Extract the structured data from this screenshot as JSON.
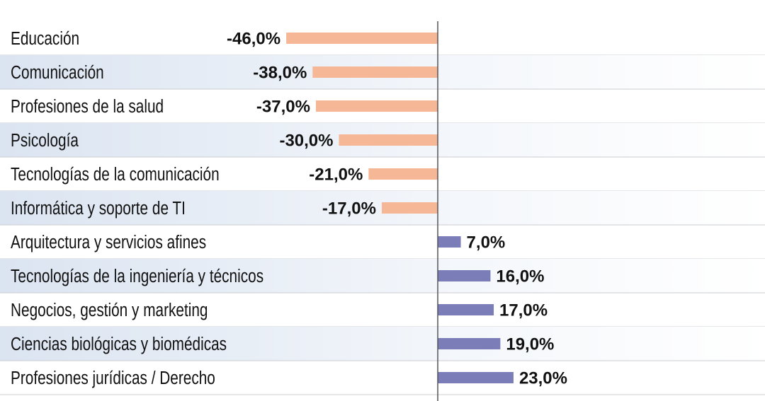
{
  "chart_data": {
    "type": "diverging-bar",
    "categories": [
      "Educación",
      "Comunicación",
      "Profesiones de la salud",
      "Psicología",
      "Tecnologías de la comunicación",
      "Informática y soporte de TI",
      "Arquitectura y servicios afines",
      "Tecnologías de la ingeniería y técnicos",
      "Negocios, gestión y marketing",
      "Ciencias biológicas y biomédicas",
      "Profesiones jurídicas / Derecho"
    ],
    "values": [
      -46,
      -38,
      -37,
      -30,
      -21,
      -17,
      7,
      16,
      17,
      19,
      23
    ],
    "value_labels": [
      "-46,0%",
      "-38,0%",
      "-37,0%",
      "-30,0%",
      "-21,0%",
      "-17,0%",
      "7,0%",
      "16,0%",
      "17,0%",
      "19,0%",
      "23,0%"
    ],
    "negative_color": "#f6b796",
    "positive_color": "#7b7db8"
  }
}
